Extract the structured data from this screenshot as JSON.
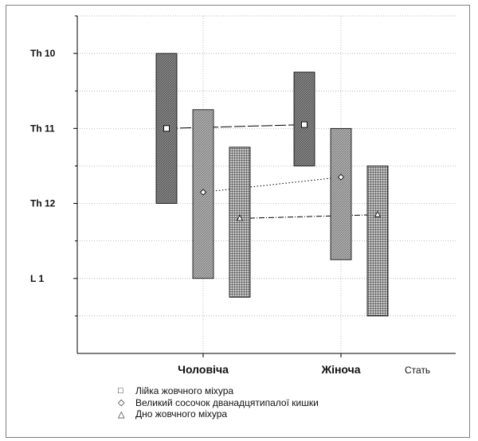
{
  "chart_data": {
    "type": "range-bar",
    "y_axis": {
      "ticks": [
        {
          "label": "Th 10",
          "value": 10
        },
        {
          "label": "Th 11",
          "value": 11
        },
        {
          "label": "Th 12",
          "value": 12
        },
        {
          "label": "L 1",
          "value": 13
        }
      ],
      "range_top": 9.5,
      "range_bottom": 14.0,
      "gridlines": "dotted",
      "reversed": true
    },
    "x_axis": {
      "title": "Стать",
      "categories": [
        "Чоловіча",
        "Жіноча"
      ]
    },
    "legend_position": "bottom",
    "series": [
      {
        "name": "Лійка жовчного міхура",
        "marker": "□",
        "marker_shape": "square",
        "connector": "dashed",
        "pattern": "medium",
        "fill": "#8c8c8c",
        "points": [
          {
            "category": "Чоловіча",
            "mean": 11.0,
            "low": 10.0,
            "high": 12.0
          },
          {
            "category": "Жіноча",
            "mean": 10.95,
            "low": 10.25,
            "high": 11.5
          }
        ]
      },
      {
        "name": "Великий сосочок дванадцятипалої кишки",
        "marker": "◇",
        "marker_shape": "diamond",
        "connector": "dotted",
        "pattern": "light",
        "fill": "#ababab",
        "points": [
          {
            "category": "Чоловіча",
            "mean": 11.85,
            "low": 10.75,
            "high": 13.0
          },
          {
            "category": "Жіноча",
            "mean": 11.65,
            "low": 11.0,
            "high": 12.75
          }
        ]
      },
      {
        "name": "Дно жовчного міхура",
        "marker": "△",
        "marker_shape": "triangle",
        "connector": "dash-dot",
        "pattern": "grid",
        "fill": "#7a7a7a",
        "points": [
          {
            "category": "Чоловіча",
            "mean": 12.2,
            "low": 11.25,
            "high": 13.25
          },
          {
            "category": "Жіноча",
            "mean": 12.15,
            "low": 11.5,
            "high": 13.5
          }
        ]
      }
    ]
  }
}
